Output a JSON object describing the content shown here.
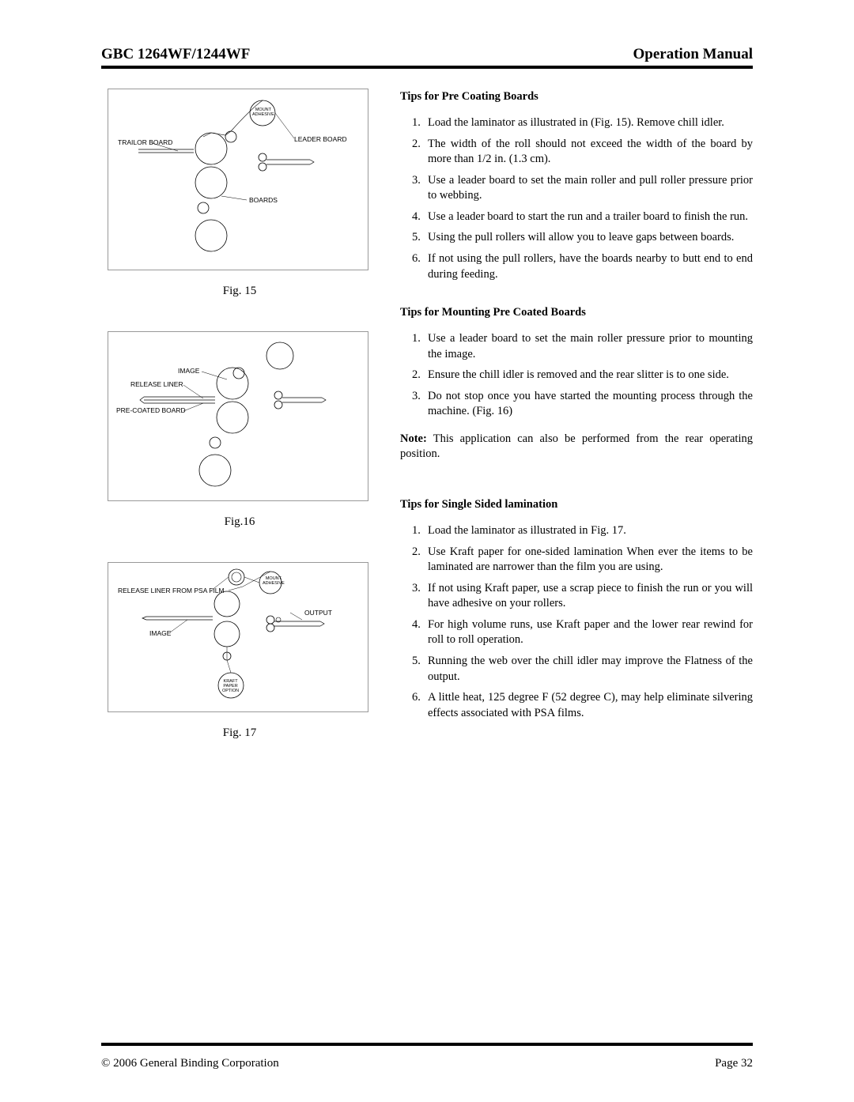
{
  "header": {
    "left": "GBC 1264WF/1244WF",
    "right": "Operation Manual"
  },
  "figures": {
    "fig15": {
      "caption": "Fig. 15",
      "labels": {
        "mount_adhesive": "MOUNT\nADHESIVE",
        "leader_board": "LEADER BOARD",
        "trailor_board": "TRAILOR BOARD",
        "boards": "BOARDS"
      }
    },
    "fig16": {
      "caption": "Fig.16",
      "labels": {
        "image": "IMAGE",
        "release_liner": "RELEASE LINER",
        "pre_coated_board": "PRE-COATED BOARD"
      }
    },
    "fig17": {
      "caption": "Fig. 17",
      "labels": {
        "mount_adhesive": "MOUNT\nADHESIVE",
        "release_liner_psa": "RELEASE LINER FROM PSA FILM",
        "output": "OUTPUT",
        "image": "IMAGE",
        "kraft_paper": "KRAFT\nPAPER\nOPTION"
      }
    }
  },
  "sections": {
    "precoating": {
      "heading": "Tips for Pre Coating Boards",
      "items": [
        "Load the laminator as illustrated in (Fig. 15). Remove chill idler.",
        "The width of the roll should not exceed the width of the board by more than 1/2 in. (1.3 cm).",
        "Use a leader board to set the main roller and pull roller pressure prior to webbing.",
        "Use a leader board to start the run and a trailer board to finish the run.",
        "Using the pull rollers will allow you to leave gaps between boards.",
        "If not using the pull rollers, have the boards nearby to butt end to end during feeding."
      ]
    },
    "mounting": {
      "heading": "Tips for Mounting Pre Coated Boards",
      "items": [
        "Use a leader board to set the main roller pressure prior to mounting the image.",
        "Ensure the chill idler is removed and the rear slitter is to one side.",
        "Do not stop once you have started the mounting process through the machine. (Fig. 16)"
      ],
      "note_bold": "Note:",
      "note_text": " This application can also be performed from the rear operating position."
    },
    "singlesided": {
      "heading": "Tips for Single Sided lamination",
      "items": [
        "Load the laminator as illustrated in Fig. 17.",
        "Use Kraft paper for one-sided lamination When ever the items to be laminated are narrower than the film you are using.",
        "If not using Kraft paper, use a scrap piece to finish the run or you will have adhesive on your rollers.",
        "For high volume runs, use Kraft paper and the lower rear rewind for roll to roll operation.",
        "Running the web over the chill idler may improve the Flatness of the output.",
        "A little heat, 125 degree F (52 degree C), may help eliminate silvering effects associated with PSA films."
      ]
    }
  },
  "footer": {
    "copyright": "© 2006 General Binding Corporation",
    "page": "Page 32"
  }
}
